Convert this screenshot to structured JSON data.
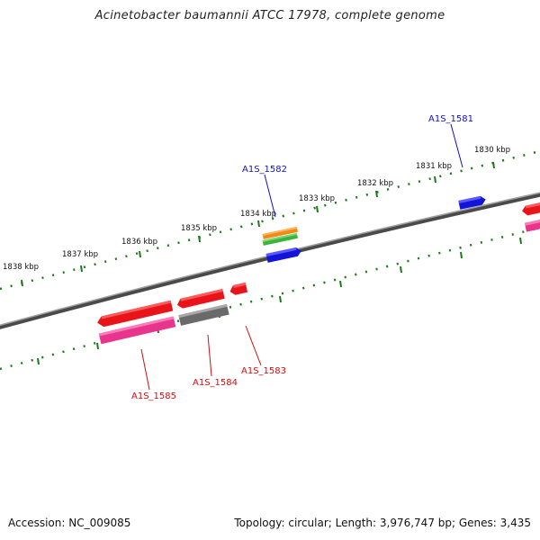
{
  "title": "Acinetobacter baumannii ATCC 17978, complete genome",
  "footer": {
    "accession": "Accession: NC_009085",
    "summary": "Topology: circular; Length: 3,976,747 bp; Genes: 3,435"
  },
  "ticks": [
    {
      "label": "1838 kbp"
    },
    {
      "label": "1837 kbp"
    },
    {
      "label": "1836 kbp"
    },
    {
      "label": "1835 kbp"
    },
    {
      "label": "1834 kbp"
    },
    {
      "label": "1833 kbp"
    },
    {
      "label": "1832 kbp"
    },
    {
      "label": "1831 kbp"
    },
    {
      "label": "1830 kbp"
    }
  ],
  "gene_labels": [
    {
      "name": "A1S_1581",
      "color": "#1010cc"
    },
    {
      "name": "A1S_1582",
      "color": "#1010cc"
    },
    {
      "name": "A1S_1583",
      "color": "#cc1010"
    },
    {
      "name": "A1S_1584",
      "color": "#cc1010"
    },
    {
      "name": "A1S_1585",
      "color": "#cc1010"
    }
  ],
  "colors": {
    "backbone": "#777777",
    "tick": "#1a7a1a",
    "gene_red": "#e8141a",
    "gene_pink": "#e8348c",
    "gene_gray": "#6a6a6a",
    "gene_blue": "#1414d8",
    "gene_orange": "#f08a14",
    "gene_green": "#3cb43c"
  }
}
